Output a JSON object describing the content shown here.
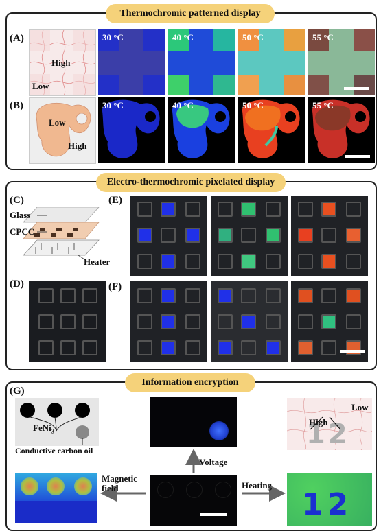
{
  "sections": {
    "top": {
      "title": "Thermochromic patterned display"
    },
    "middle": {
      "title": "Electro-thermochromic pixelated display"
    },
    "bottom": {
      "title": "Information encryption"
    }
  },
  "panels": {
    "A": "(A)",
    "B": "(B)",
    "C": "(C)",
    "D": "(D)",
    "E": "(E)",
    "F": "(F)",
    "G": "(G)"
  },
  "row_a": {
    "high_label": "High",
    "low_label": "Low",
    "temps": [
      "30 °C",
      "40 °C",
      "50 °C",
      "55 °C"
    ]
  },
  "row_b": {
    "low_label": "Low",
    "high_label": "High",
    "temps": [
      "30 °C",
      "40 °C",
      "50 °C",
      "55 °C"
    ]
  },
  "panel_c": {
    "glass": "Glass",
    "cpcc": "CPCC",
    "heater": "Heater"
  },
  "panel_g": {
    "fe_label": "FeNi",
    "fe_sub": "3",
    "oil_label": "Conductive carbon oil",
    "voltage": "Voltage",
    "magnetic": "Magnetic",
    "field": "field",
    "heating": "Heating",
    "low": "Low",
    "high": "High",
    "digits": "12"
  }
}
